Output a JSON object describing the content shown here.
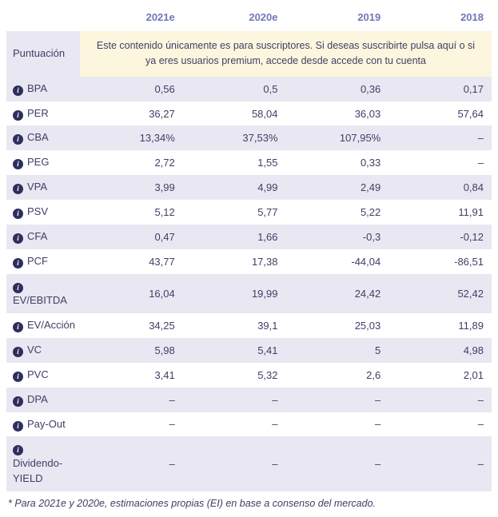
{
  "table": {
    "columns": [
      "2021e",
      "2020e",
      "2019",
      "2018"
    ],
    "score_label": "Puntuación",
    "subscribe_message": "Este contenido únicamente es para suscriptores. Si deseas suscribirte pulsa aquí o si ya eres usuarios premium, accede desde accede con tu cuenta",
    "rows": [
      {
        "label": "BPA",
        "values": [
          "0,56",
          "0,5",
          "0,36",
          "0,17"
        ]
      },
      {
        "label": "PER",
        "values": [
          "36,27",
          "58,04",
          "36,03",
          "57,64"
        ]
      },
      {
        "label": "CBA",
        "values": [
          "13,34%",
          "37,53%",
          "107,95%",
          "–"
        ]
      },
      {
        "label": "PEG",
        "values": [
          "2,72",
          "1,55",
          "0,33",
          "–"
        ]
      },
      {
        "label": "VPA",
        "values": [
          "3,99",
          "4,99",
          "2,49",
          "0,84"
        ]
      },
      {
        "label": "PSV",
        "values": [
          "5,12",
          "5,77",
          "5,22",
          "11,91"
        ]
      },
      {
        "label": "CFA",
        "values": [
          "0,47",
          "1,66",
          "-0,3",
          "-0,12"
        ]
      },
      {
        "label": "PCF",
        "values": [
          "43,77",
          "17,38",
          "-44,04",
          "-86,51"
        ]
      },
      {
        "label": "EV/EBITDA",
        "values": [
          "16,04",
          "19,99",
          "24,42",
          "52,42"
        ]
      },
      {
        "label": "EV/Acción",
        "values": [
          "34,25",
          "39,1",
          "25,03",
          "11,89"
        ]
      },
      {
        "label": "VC",
        "values": [
          "5,98",
          "5,41",
          "5",
          "4,98"
        ]
      },
      {
        "label": "PVC",
        "values": [
          "3,41",
          "5,32",
          "2,6",
          "2,01"
        ]
      },
      {
        "label": "DPA",
        "values": [
          "–",
          "–",
          "–",
          "–"
        ]
      },
      {
        "label": "Pay-Out",
        "values": [
          "–",
          "–",
          "–",
          "–"
        ]
      },
      {
        "label": "Dividendo-YIELD",
        "values": [
          "–",
          "–",
          "–",
          "–"
        ]
      }
    ],
    "footnote": "* Para 2021e y 2020e, estimaciones propias (EI) en base a consenso del mercado."
  },
  "icons": {
    "info": "i"
  },
  "colors": {
    "stripe": "#e9e7f1",
    "banner": "#fcf6de",
    "header_text": "#7177b8",
    "body_text": "#3f3f66",
    "info_icon_bg": "#2e2e5e"
  }
}
